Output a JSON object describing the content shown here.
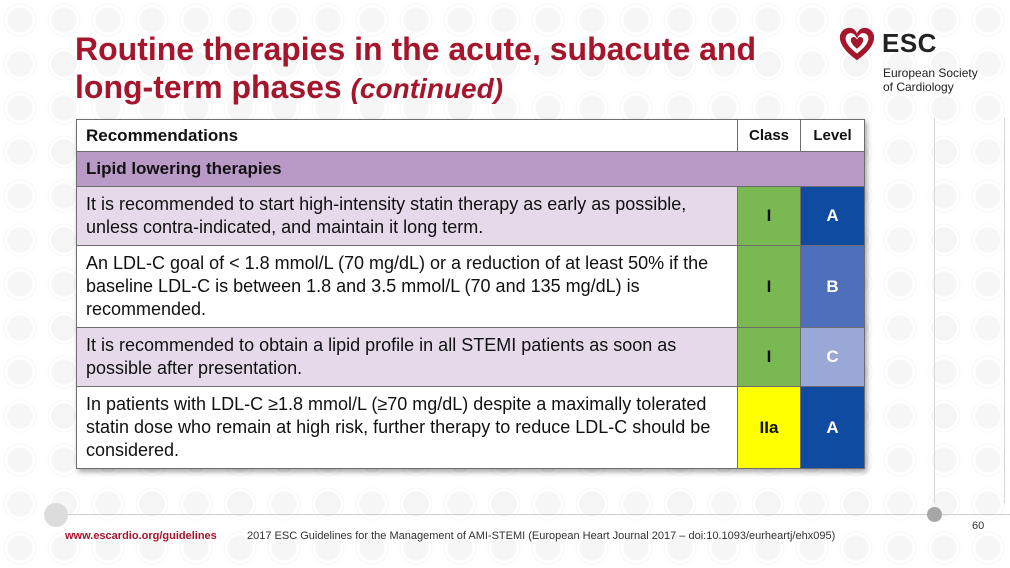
{
  "slide": {
    "title": "Routine therapies in the acute, subacute and long-term phases",
    "title_suffix": "(continued)"
  },
  "logo": {
    "abbr": "ESC",
    "line1": "European Society",
    "line2": "of Cardiology",
    "icon": "heart-logo-icon"
  },
  "table": {
    "header": {
      "recommendations": "Recommendations",
      "class": "Class",
      "level": "Level"
    },
    "section": "Lipid lowering therapies",
    "rows": [
      {
        "text": "It is recommended to start high-intensity statin therapy as early as possible, unless contra-indicated, and maintain it long term.",
        "class": "I",
        "level": "A",
        "row_bg": "#e6d9ea",
        "class_bg": "#7ab851",
        "class_color": "#111111",
        "level_bg": "#0f4ca1",
        "level_color": "#ffffff"
      },
      {
        "text": "An LDL-C goal of < 1.8 mmol/L (70 mg/dL) or a reduction of at least 50% if the baseline LDL-C is between 1.8 and 3.5 mmol/L (70 and 135 mg/dL) is recommended.",
        "class": "I",
        "level": "B",
        "row_bg": "#ffffff",
        "class_bg": "#7ab851",
        "class_color": "#111111",
        "level_bg": "#4e6fbb",
        "level_color": "#ffffff"
      },
      {
        "text": "It is recommended to obtain a lipid profile in all STEMI patients as soon as possible after presentation.",
        "class": "I",
        "level": "C",
        "row_bg": "#e6d9ea",
        "class_bg": "#7ab851",
        "class_color": "#111111",
        "level_bg": "#9aa8d8",
        "level_color": "#ffffff"
      },
      {
        "text": "In patients with LDL-C ≥1.8 mmol/L (≥70 mg/dL) despite a maximally tolerated statin dose who remain at high risk, further therapy to reduce LDL-C should be considered.",
        "class": "IIa",
        "level": "A",
        "row_bg": "#ffffff",
        "class_bg": "#ffff00",
        "class_color": "#111111",
        "level_bg": "#0f4ca1",
        "level_color": "#ffffff"
      }
    ]
  },
  "footer": {
    "link": "www.escardio.org/guidelines",
    "citation": "2017 ESC Guidelines for the Management of AMI-STEMI (European Heart Journal 2017 – doi:10.1093/eurheartj/ehx095)",
    "page": "60"
  },
  "colors": {
    "title": "#a5152c",
    "section_bg": "#b99ac6"
  }
}
